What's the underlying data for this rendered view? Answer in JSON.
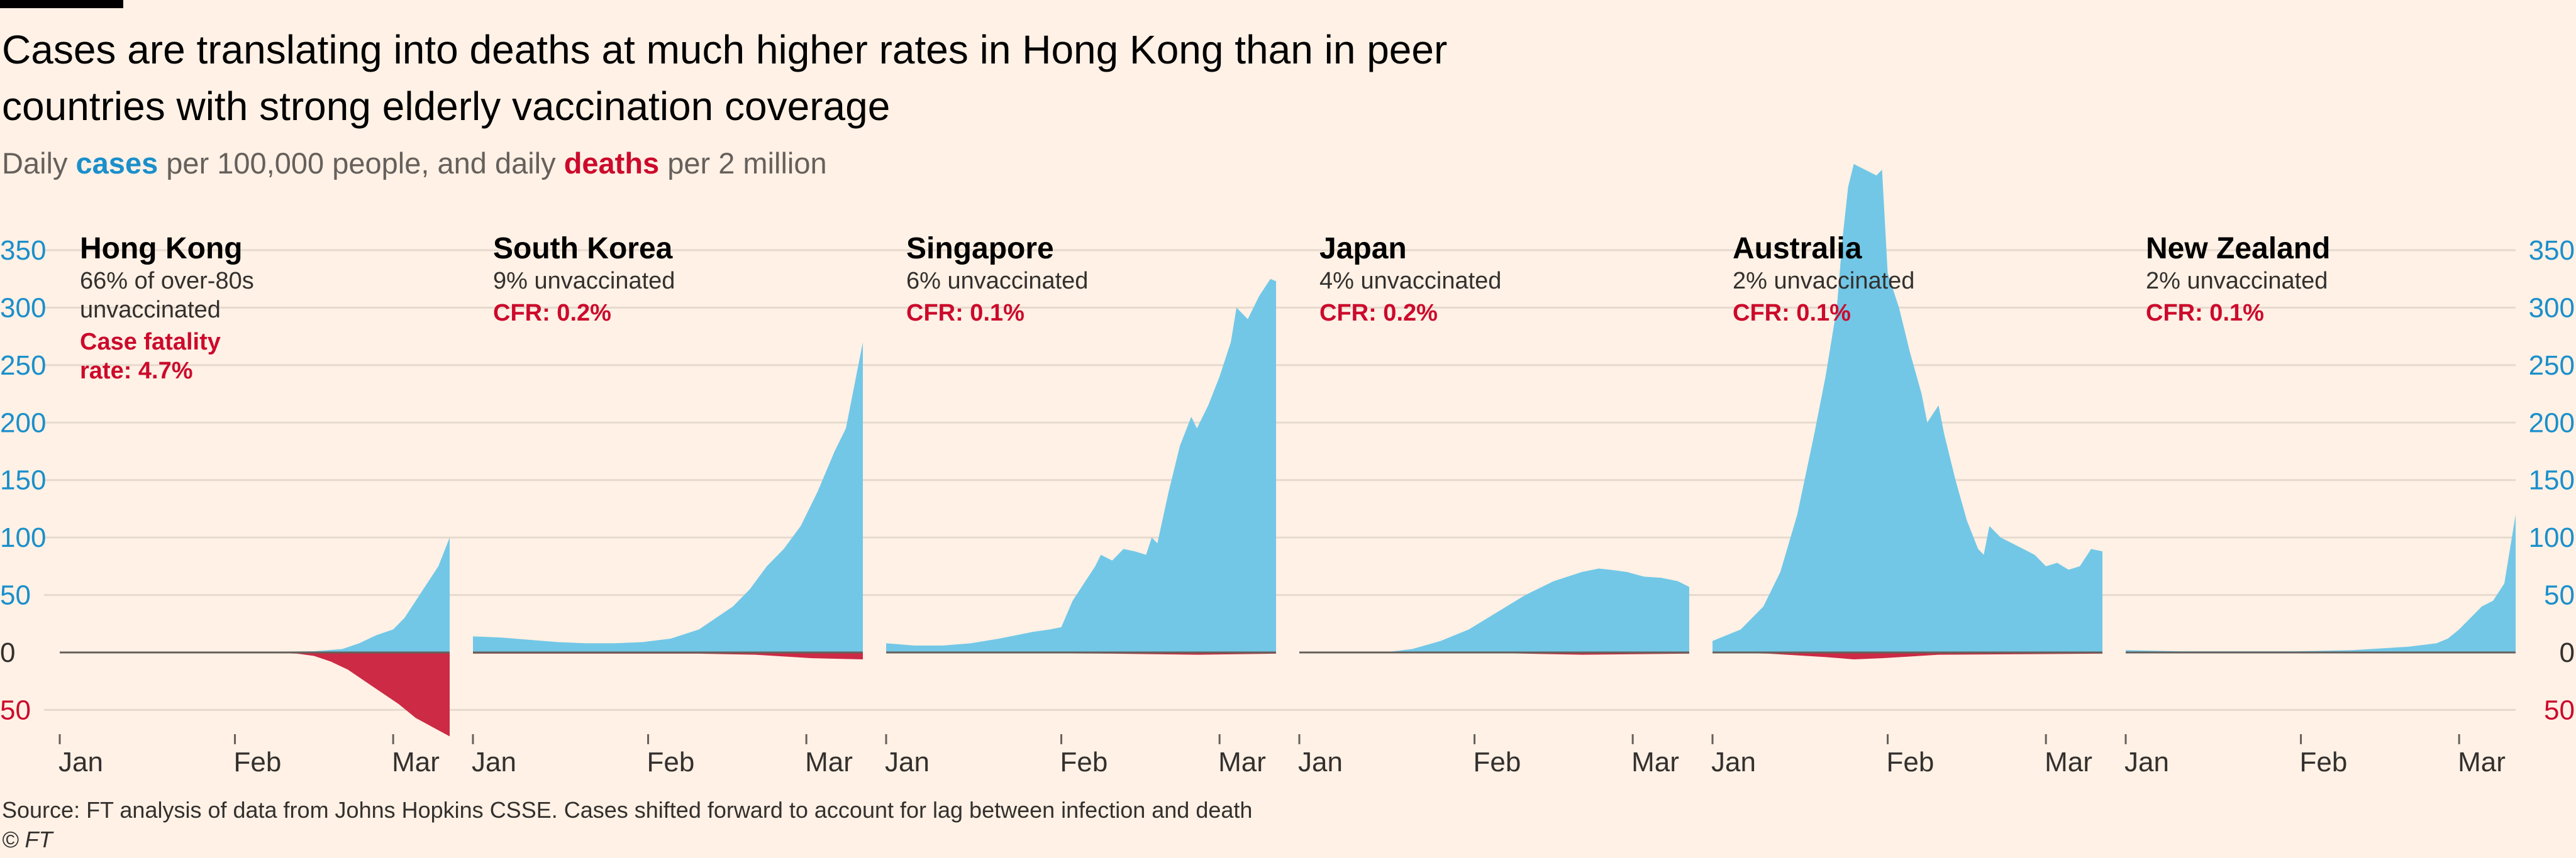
{
  "title": "Cases are translating into deaths at much higher rates in Hong Kong than in peer countries with strong elderly vaccination coverage",
  "subtitle": {
    "prefix": "Daily ",
    "cases_word": "cases",
    "middle": " per 100,000 people, and daily ",
    "deaths_word": "deaths",
    "suffix": " per 2 million"
  },
  "source": "Source: FT analysis of data from Johns Hopkins CSSE. Cases shifted forward to account for lag between infection and death",
  "credit": "© FT",
  "colors": {
    "cases": "#72c7e7",
    "deaths": "#cc2a45",
    "tick_blue": "#1a8fcb",
    "grid": "#e6d9ce",
    "zero": "#66605c",
    "cfr_red": "#cc0a2c"
  },
  "chart_data": {
    "type": "area",
    "y_ticks_cases": [
      350,
      300,
      250,
      200,
      150,
      100,
      50,
      0
    ],
    "y_ticks_deaths": [
      50
    ],
    "ylim": [
      -75,
      425
    ],
    "x_ticks": [
      "Jan",
      "Feb",
      "Mar"
    ],
    "x_tick_positions": [
      0,
      31,
      59
    ],
    "x_range": [
      0,
      69
    ],
    "panels": [
      {
        "name": "Hong Kong",
        "note": [
          "66% of over-80s",
          "unvaccinated"
        ],
        "cfr": [
          "Case fatality",
          "rate: 4.7%"
        ],
        "cases": [
          [
            0,
            0
          ],
          [
            30,
            0.5
          ],
          [
            45,
            1
          ],
          [
            50,
            3
          ],
          [
            53,
            8
          ],
          [
            56,
            15
          ],
          [
            59,
            20
          ],
          [
            61,
            30
          ],
          [
            63,
            45
          ],
          [
            65,
            60
          ],
          [
            67,
            75
          ],
          [
            69,
            100
          ]
        ],
        "deaths": [
          [
            0,
            0
          ],
          [
            35,
            0
          ],
          [
            42,
            -1
          ],
          [
            45,
            -3
          ],
          [
            48,
            -8
          ],
          [
            51,
            -15
          ],
          [
            54,
            -25
          ],
          [
            57,
            -35
          ],
          [
            60,
            -45
          ],
          [
            63,
            -57
          ],
          [
            66,
            -65
          ],
          [
            69,
            -73
          ]
        ]
      },
      {
        "name": "South Korea",
        "note": [
          "9% unvaccinated"
        ],
        "cfr": [
          "CFR: 0.2%"
        ],
        "cases": [
          [
            0,
            14
          ],
          [
            5,
            13
          ],
          [
            10,
            11
          ],
          [
            15,
            9
          ],
          [
            20,
            8
          ],
          [
            25,
            8
          ],
          [
            30,
            9
          ],
          [
            35,
            12
          ],
          [
            40,
            20
          ],
          [
            43,
            30
          ],
          [
            46,
            40
          ],
          [
            49,
            55
          ],
          [
            52,
            75
          ],
          [
            55,
            90
          ],
          [
            58,
            110
          ],
          [
            61,
            140
          ],
          [
            64,
            175
          ],
          [
            66,
            195
          ],
          [
            69,
            270
          ]
        ],
        "deaths": [
          [
            0,
            -1
          ],
          [
            40,
            -1
          ],
          [
            50,
            -2
          ],
          [
            60,
            -5
          ],
          [
            69,
            -6
          ]
        ]
      },
      {
        "name": "Singapore",
        "note": [
          "6% unvaccinated"
        ],
        "cfr": [
          "CFR: 0.1%"
        ],
        "cases": [
          [
            0,
            8
          ],
          [
            5,
            6
          ],
          [
            10,
            6
          ],
          [
            15,
            8
          ],
          [
            20,
            12
          ],
          [
            23,
            15
          ],
          [
            26,
            18
          ],
          [
            29,
            20
          ],
          [
            31,
            22
          ],
          [
            33,
            45
          ],
          [
            35,
            60
          ],
          [
            37,
            75
          ],
          [
            38,
            85
          ],
          [
            40,
            80
          ],
          [
            42,
            90
          ],
          [
            44,
            88
          ],
          [
            46,
            85
          ],
          [
            47,
            100
          ],
          [
            48,
            95
          ],
          [
            50,
            140
          ],
          [
            52,
            180
          ],
          [
            54,
            205
          ],
          [
            55,
            195
          ],
          [
            57,
            215
          ],
          [
            59,
            240
          ],
          [
            61,
            270
          ],
          [
            62,
            300
          ],
          [
            64,
            290
          ],
          [
            66,
            310
          ],
          [
            68,
            325
          ],
          [
            69,
            323
          ]
        ],
        "deaths": [
          [
            0,
            0
          ],
          [
            40,
            -1
          ],
          [
            55,
            -2
          ],
          [
            69,
            -1
          ]
        ]
      },
      {
        "name": "Japan",
        "note": [
          "4% unvaccinated"
        ],
        "cfr": [
          "CFR: 0.2%"
        ],
        "cases": [
          [
            0,
            0
          ],
          [
            15,
            0
          ],
          [
            20,
            3
          ],
          [
            25,
            10
          ],
          [
            30,
            20
          ],
          [
            35,
            35
          ],
          [
            40,
            50
          ],
          [
            45,
            62
          ],
          [
            50,
            70
          ],
          [
            53,
            73
          ],
          [
            55,
            72
          ],
          [
            58,
            70
          ],
          [
            61,
            66
          ],
          [
            64,
            65
          ],
          [
            67,
            62
          ],
          [
            69,
            57
          ]
        ],
        "deaths": [
          [
            0,
            0
          ],
          [
            25,
            0
          ],
          [
            40,
            -1
          ],
          [
            50,
            -2
          ],
          [
            69,
            -1
          ]
        ]
      },
      {
        "name": "Australia",
        "note": [
          "2% unvaccinated"
        ],
        "cfr": [
          "CFR: 0.1%"
        ],
        "cases": [
          [
            0,
            10
          ],
          [
            5,
            20
          ],
          [
            9,
            40
          ],
          [
            12,
            70
          ],
          [
            15,
            120
          ],
          [
            18,
            190
          ],
          [
            20,
            240
          ],
          [
            22,
            300
          ],
          [
            23,
            360
          ],
          [
            24,
            405
          ],
          [
            25,
            425
          ],
          [
            27,
            420
          ],
          [
            29,
            415
          ],
          [
            30,
            420
          ],
          [
            31,
            330
          ],
          [
            33,
            300
          ],
          [
            35,
            260
          ],
          [
            37,
            225
          ],
          [
            38,
            200
          ],
          [
            40,
            215
          ],
          [
            41,
            190
          ],
          [
            43,
            150
          ],
          [
            45,
            115
          ],
          [
            47,
            90
          ],
          [
            48,
            85
          ],
          [
            49,
            110
          ],
          [
            51,
            100
          ],
          [
            53,
            95
          ],
          [
            55,
            90
          ],
          [
            57,
            85
          ],
          [
            59,
            75
          ],
          [
            61,
            78
          ],
          [
            63,
            72
          ],
          [
            65,
            75
          ],
          [
            67,
            90
          ],
          [
            69,
            88
          ]
        ],
        "deaths": [
          [
            0,
            0
          ],
          [
            10,
            -1
          ],
          [
            20,
            -4
          ],
          [
            25,
            -6
          ],
          [
            30,
            -5
          ],
          [
            40,
            -2
          ],
          [
            69,
            -1
          ]
        ]
      },
      {
        "name": "New Zealand",
        "note": [
          "2% unvaccinated"
        ],
        "cfr": [
          "CFR: 0.1%"
        ],
        "cases": [
          [
            0,
            2
          ],
          [
            10,
            1
          ],
          [
            20,
            1
          ],
          [
            30,
            1
          ],
          [
            40,
            2
          ],
          [
            50,
            5
          ],
          [
            55,
            8
          ],
          [
            57,
            12
          ],
          [
            59,
            20
          ],
          [
            61,
            30
          ],
          [
            63,
            40
          ],
          [
            65,
            45
          ],
          [
            67,
            60
          ],
          [
            68,
            90
          ],
          [
            69,
            120
          ]
        ],
        "deaths": [
          [
            0,
            0
          ],
          [
            69,
            0
          ]
        ]
      }
    ]
  }
}
